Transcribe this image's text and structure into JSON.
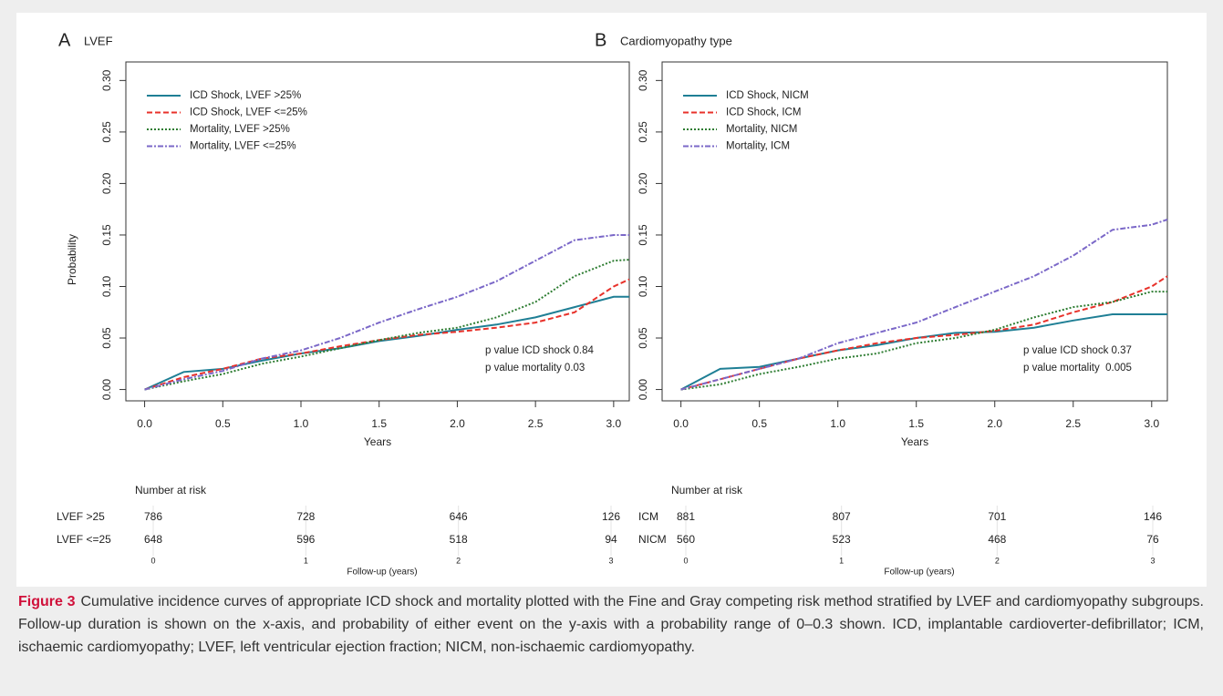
{
  "chart_data": [
    {
      "type": "line",
      "panel": "A",
      "title": "LVEF",
      "ylabel": "Probability",
      "xlabel": "Years",
      "x": [
        0,
        0.25,
        0.5,
        0.75,
        1.0,
        1.25,
        1.5,
        1.75,
        2.0,
        2.25,
        2.5,
        2.75,
        3.0,
        3.1
      ],
      "series": [
        {
          "name": "ICD Shock, LVEF >25%",
          "color": "#1f7f95",
          "style": "solid",
          "values": [
            0,
            0.017,
            0.02,
            0.028,
            0.035,
            0.04,
            0.047,
            0.052,
            0.058,
            0.063,
            0.07,
            0.08,
            0.09,
            0.09
          ]
        },
        {
          "name": "ICD Shock, LVEF <=25%",
          "color": "#e8322b",
          "style": "dashed",
          "values": [
            0,
            0.012,
            0.02,
            0.03,
            0.035,
            0.042,
            0.048,
            0.053,
            0.056,
            0.06,
            0.065,
            0.075,
            0.1,
            0.107
          ]
        },
        {
          "name": "Mortality, LVEF >25%",
          "color": "#2e7d32",
          "style": "dotted",
          "values": [
            0,
            0.008,
            0.015,
            0.025,
            0.032,
            0.04,
            0.048,
            0.055,
            0.06,
            0.07,
            0.085,
            0.11,
            0.125,
            0.126
          ]
        },
        {
          "name": "Mortality, LVEF <=25%",
          "color": "#7b68c8",
          "style": "dashdot",
          "values": [
            0,
            0.01,
            0.018,
            0.03,
            0.038,
            0.05,
            0.065,
            0.078,
            0.09,
            0.105,
            0.125,
            0.145,
            0.15,
            0.15
          ]
        }
      ],
      "xlim": [
        -0.12,
        3.1
      ],
      "ylim": [
        -0.011,
        0.318
      ],
      "xticks": [
        {
          "value": 0,
          "label": "0.0"
        },
        0.5,
        {
          "value": 1,
          "label": "1.0"
        },
        1.5,
        {
          "value": 2,
          "label": "2.0"
        },
        2.5,
        {
          "value": 3,
          "label": "3.0"
        }
      ],
      "yticks": [
        {
          "value": 0,
          "label": "0.00"
        },
        0.05,
        {
          "value": 0.1,
          "label": "0.10"
        },
        0.15,
        {
          "value": 0.2,
          "label": "0.20"
        },
        0.25,
        {
          "value": 0.3,
          "label": "0.30"
        }
      ],
      "annotations": [
        "p value ICD shock 0.84",
        "p value mortality 0.03"
      ],
      "risk_table": {
        "title": "Number at risk",
        "xlabel": "Follow-up (years)",
        "x": [
          0,
          1,
          2,
          3
        ],
        "rows": [
          {
            "label": "LVEF >25",
            "values": [
              786,
              728,
              646,
              126
            ]
          },
          {
            "label": "LVEF <=25",
            "values": [
              648,
              596,
              518,
              94
            ]
          }
        ]
      }
    },
    {
      "type": "line",
      "panel": "B",
      "title": "Cardiomyopathy type",
      "xlabel": "Years",
      "x": [
        0,
        0.25,
        0.5,
        0.75,
        1.0,
        1.25,
        1.5,
        1.75,
        2.0,
        2.25,
        2.5,
        2.75,
        3.0,
        3.1
      ],
      "series": [
        {
          "name": "ICD Shock, NICM",
          "color": "#1f7f95",
          "style": "solid",
          "values": [
            0,
            0.02,
            0.022,
            0.03,
            0.038,
            0.043,
            0.05,
            0.055,
            0.056,
            0.06,
            0.067,
            0.073,
            0.073,
            0.073
          ]
        },
        {
          "name": "ICD Shock, ICM",
          "color": "#e8322b",
          "style": "dashed",
          "values": [
            0,
            0.01,
            0.02,
            0.03,
            0.038,
            0.045,
            0.05,
            0.053,
            0.057,
            0.063,
            0.075,
            0.085,
            0.1,
            0.11
          ]
        },
        {
          "name": "Mortality, NICM",
          "color": "#2e7d32",
          "style": "dotted",
          "values": [
            0,
            0.005,
            0.015,
            0.022,
            0.03,
            0.035,
            0.045,
            0.05,
            0.058,
            0.07,
            0.08,
            0.085,
            0.095,
            0.095
          ]
        },
        {
          "name": "Mortality, ICM",
          "color": "#7b68c8",
          "style": "dashdot",
          "values": [
            0,
            0.01,
            0.02,
            0.03,
            0.045,
            0.055,
            0.065,
            0.08,
            0.095,
            0.11,
            0.13,
            0.155,
            0.16,
            0.165
          ]
        }
      ],
      "xlim": [
        -0.12,
        3.1
      ],
      "ylim": [
        -0.011,
        0.318
      ],
      "xticks": [
        {
          "value": 0,
          "label": "0.0"
        },
        0.5,
        {
          "value": 1,
          "label": "1.0"
        },
        1.5,
        {
          "value": 2,
          "label": "2.0"
        },
        2.5,
        {
          "value": 3,
          "label": "3.0"
        }
      ],
      "yticks": [
        {
          "value": 0,
          "label": "0.00"
        },
        0.05,
        {
          "value": 0.1,
          "label": "0.10"
        },
        0.15,
        {
          "value": 0.2,
          "label": "0.20"
        },
        0.25,
        {
          "value": 0.3,
          "label": "0.30"
        }
      ],
      "annotations": [
        "p value ICD shock 0.37",
        "p value mortality  0.005"
      ],
      "risk_table": {
        "title": "Number at risk",
        "xlabel": "Follow-up (years)",
        "x": [
          0,
          1,
          2,
          3
        ],
        "rows": [
          {
            "label": "ICM",
            "values": [
              881,
              807,
              701,
              146
            ]
          },
          {
            "label": "NICM",
            "values": [
              560,
              523,
              468,
              76
            ]
          }
        ]
      }
    }
  ],
  "caption": {
    "label": "Figure 3",
    "text": "Cumulative incidence curves of appropriate ICD shock and mortality plotted with the Fine and Gray competing risk method stratified by LVEF and cardiomyopathy subgroups. Follow-up duration is shown on the x-axis, and probability of either event on the y-axis with a probability range of 0–0.3 shown. ICD, implantable cardioverter-defibrillator; ICM, ischaemic cardiomyopathy; LVEF, left ventricular ejection fraction; NICM, non-ischaemic cardiomyopathy."
  }
}
